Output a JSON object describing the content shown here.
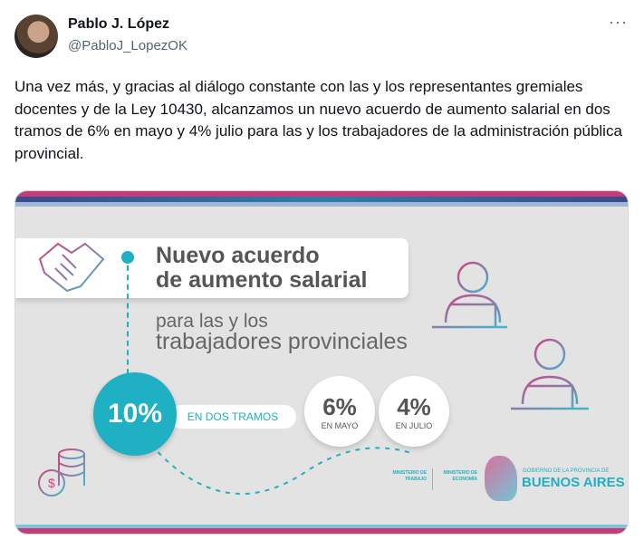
{
  "tweet": {
    "author_name": "Pablo J. López",
    "handle": "@PabloJ_LopezOK",
    "more_icon": "more-horizontal-icon",
    "text": "Una vez más, y gracias al diálogo constante con las y los representantes gremiales docentes y de la Ley 10430, alcanzamos un nuevo acuerdo de aumento salarial en dos tramos de 6% en mayo y 4% julio para las y los trabajadores de la administración pública provincial."
  },
  "image": {
    "title_line1": "Nuevo acuerdo",
    "title_line2": "de aumento salarial",
    "subtitle_line1": "para las y los",
    "subtitle_line2": "trabajadores provinciales",
    "total": "10%",
    "total_label": "EN DOS TRAMOS",
    "tramo1_value": "6%",
    "tramo1_label": "EN MAYO",
    "tramo2_value": "4%",
    "tramo2_label": "EN JULIO",
    "ministry1": "MINISTERIO DE TRABAJO",
    "ministry2": "MINISTERIO DE ECONOMÍA",
    "gov_line1": "GOBIERNO DE LA PROVINCIA DE",
    "gov_line2": "BUENOS AIRES",
    "colors": {
      "teal": "#1fb0c4",
      "pink": "#d6407f",
      "gray_bg": "#e3e3e3"
    }
  }
}
